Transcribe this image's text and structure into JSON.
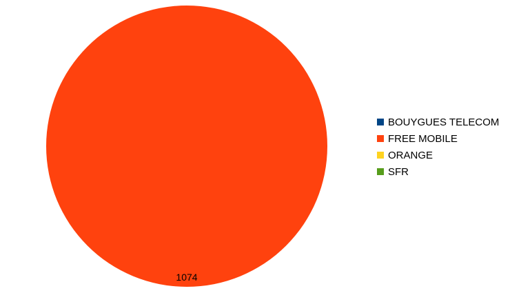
{
  "chart_data": {
    "type": "pie",
    "slices": [
      {
        "name": "BOUYGUES TELECOM",
        "value": 0,
        "color": "#004586"
      },
      {
        "name": "FREE MOBILE",
        "value": 1074,
        "color": "#ff420e"
      },
      {
        "name": "ORANGE",
        "value": 0,
        "color": "#ffd320"
      },
      {
        "name": "SFR",
        "value": 0,
        "color": "#579d1c"
      }
    ],
    "data_labels": [
      "1074"
    ],
    "legend_position": "right"
  }
}
